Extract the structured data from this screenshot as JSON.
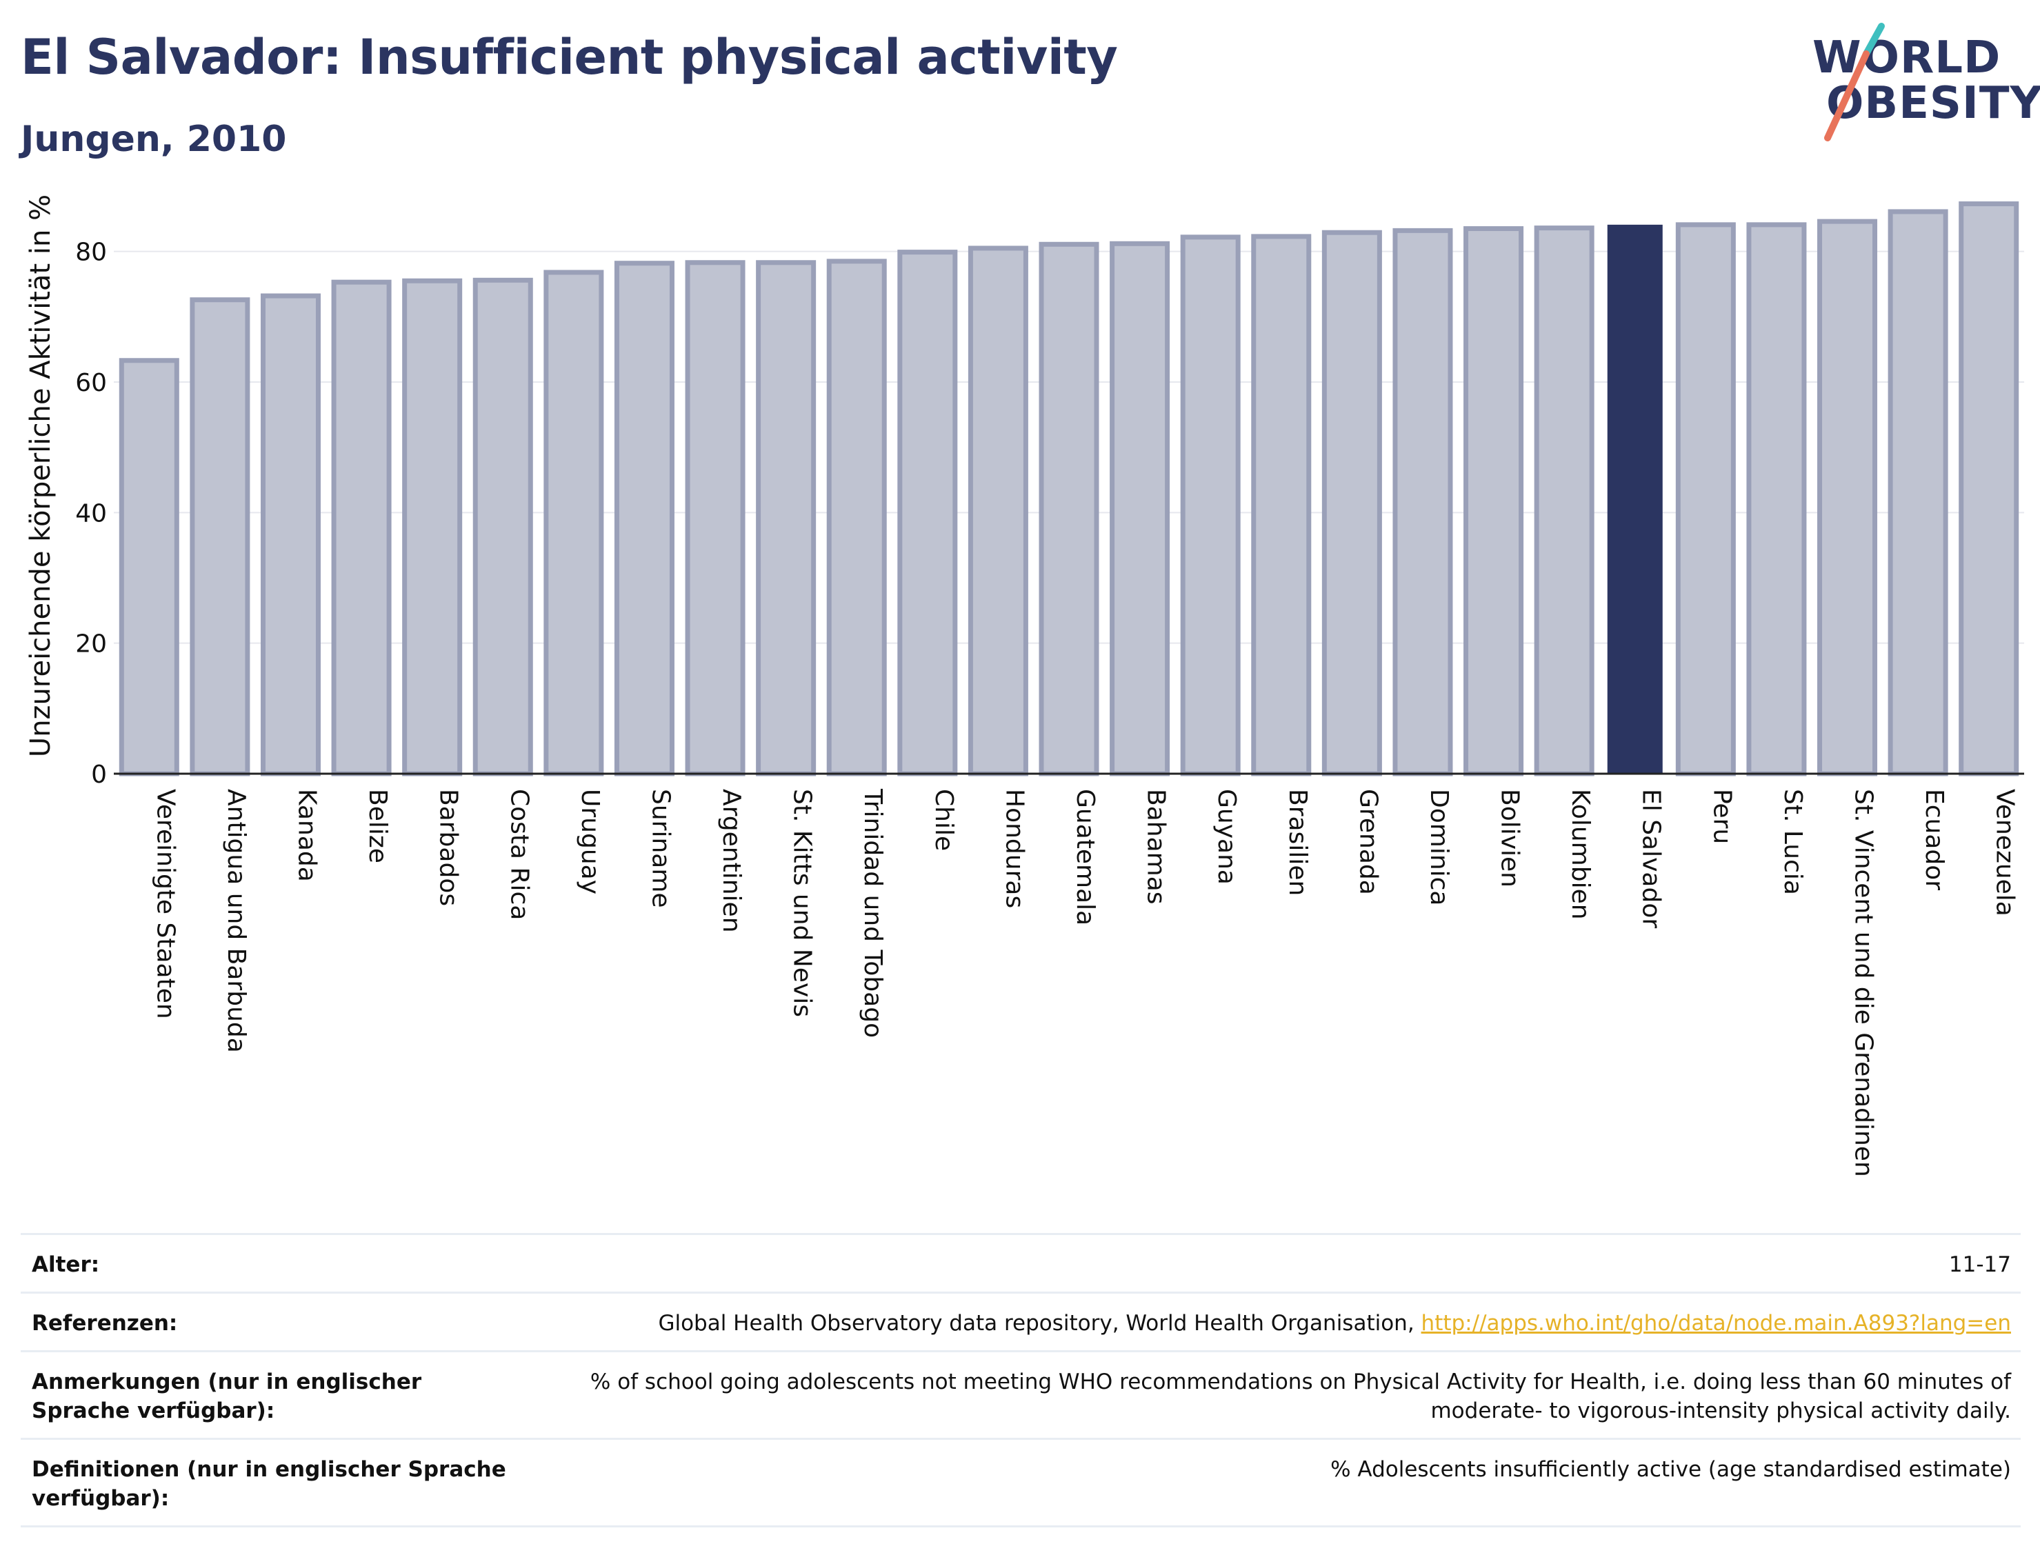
{
  "title": "El Salvador: Insufficient physical activity",
  "subtitle": "Jungen, 2010",
  "logo": {
    "line1": "WORLD",
    "line2": "OBESITY",
    "colors": {
      "text": "#2b3561",
      "slash_top": "#3fbfbf",
      "slash_bottom": "#e8735a"
    }
  },
  "colors": {
    "bar": "#bfc3d1",
    "bar_stroke": "#9aa0b8",
    "highlight": "#2b3561",
    "grid": "#e6e8ee",
    "axis": "#222222",
    "link": "#e6b227"
  },
  "chart_data": {
    "type": "bar",
    "ylabel": "Unzureichende körperliche Aktivität in %",
    "xlabel": "",
    "ylim": [
      0,
      90
    ],
    "yticks": [
      0,
      20,
      40,
      60,
      80
    ],
    "grid": true,
    "highlight": "El Salvador",
    "categories": [
      "Vereinigte Staaten",
      "Antigua und Barbuda",
      "Kanada",
      "Belize",
      "Barbados",
      "Costa Rica",
      "Uruguay",
      "Suriname",
      "Argentinien",
      "St. Kitts und Nevis",
      "Trinidad und Tobago",
      "Chile",
      "Honduras",
      "Guatemala",
      "Bahamas",
      "Guyana",
      "Brasilien",
      "Grenada",
      "Dominica",
      "Bolivien",
      "Kolumbien",
      "El Salvador",
      "Peru",
      "St. Lucia",
      "St. Vincent und die Grenadinen",
      "Ecuador",
      "Venezuela"
    ],
    "values": [
      63.3,
      72.6,
      73.2,
      75.3,
      75.5,
      75.6,
      76.8,
      78.2,
      78.3,
      78.3,
      78.5,
      79.9,
      80.5,
      81.1,
      81.2,
      82.2,
      82.3,
      82.9,
      83.2,
      83.5,
      83.6,
      84.1,
      84.1,
      84.1,
      84.6,
      86.1,
      87.3
    ]
  },
  "meta": {
    "age": {
      "label": "Alter:",
      "value": "11-17"
    },
    "references": {
      "label": "Referenzen:",
      "value": "Global Health Observatory data repository, World Health Organisation, ",
      "link": "http://apps.who.int/gho/data/node.main.A893?lang=en"
    },
    "notes": {
      "label": "Anmerkungen (nur in englischer Sprache verfügbar):",
      "value": "% of school going adolescents not meeting WHO recommendations on Physical Activity for Health, i.e. doing less than 60 minutes of moderate- to vigorous-intensity physical activity daily."
    },
    "definitions": {
      "label": "Definitionen (nur in englischer Sprache verfügbar):",
      "value": "% Adolescents insufficiently active (age standardised estimate)"
    }
  }
}
